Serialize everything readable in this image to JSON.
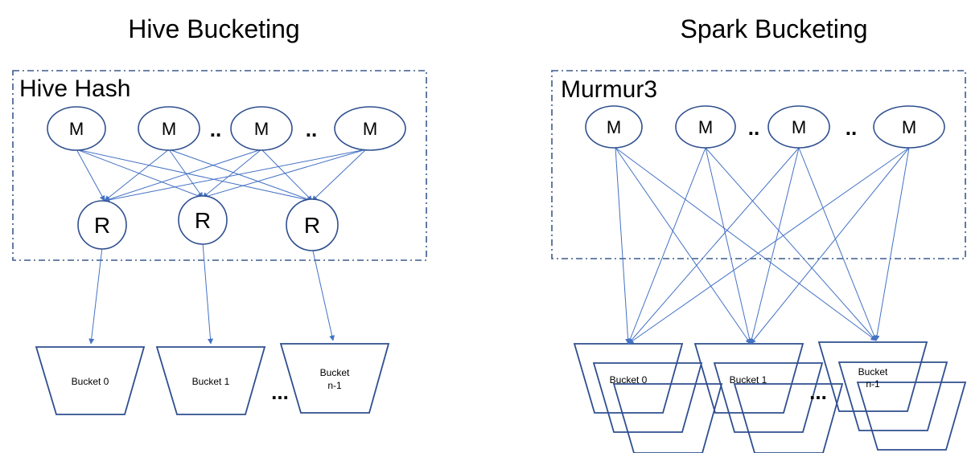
{
  "hive": {
    "title": "Hive Bucketing",
    "hash_label": "Hive Hash",
    "mappers": [
      "M",
      "M",
      "M",
      "M"
    ],
    "reducers": [
      "R",
      "R",
      "R"
    ],
    "mapper_dots": [
      "..",
      ".."
    ],
    "buckets": [
      {
        "line1": "Bucket 0",
        "line2": ""
      },
      {
        "line1": "Bucket 1",
        "line2": ""
      },
      {
        "line1": "Bucket",
        "line2": "n-1"
      }
    ],
    "bucket_dots": "..."
  },
  "spark": {
    "title": "Spark Bucketing",
    "hash_label": "Murmur3",
    "mappers": [
      "M",
      "M",
      "M",
      "M"
    ],
    "mapper_dots": [
      "..",
      ".."
    ],
    "buckets": [
      {
        "line1": "Bucket 0",
        "line2": ""
      },
      {
        "line1": "Bucket 1",
        "line2": ""
      },
      {
        "line1": "Bucket",
        "line2": "n-1"
      }
    ],
    "bucket_dots": "..."
  },
  "colors": {
    "stroke": "#2f4f8f",
    "arrow": "#4472c4"
  }
}
